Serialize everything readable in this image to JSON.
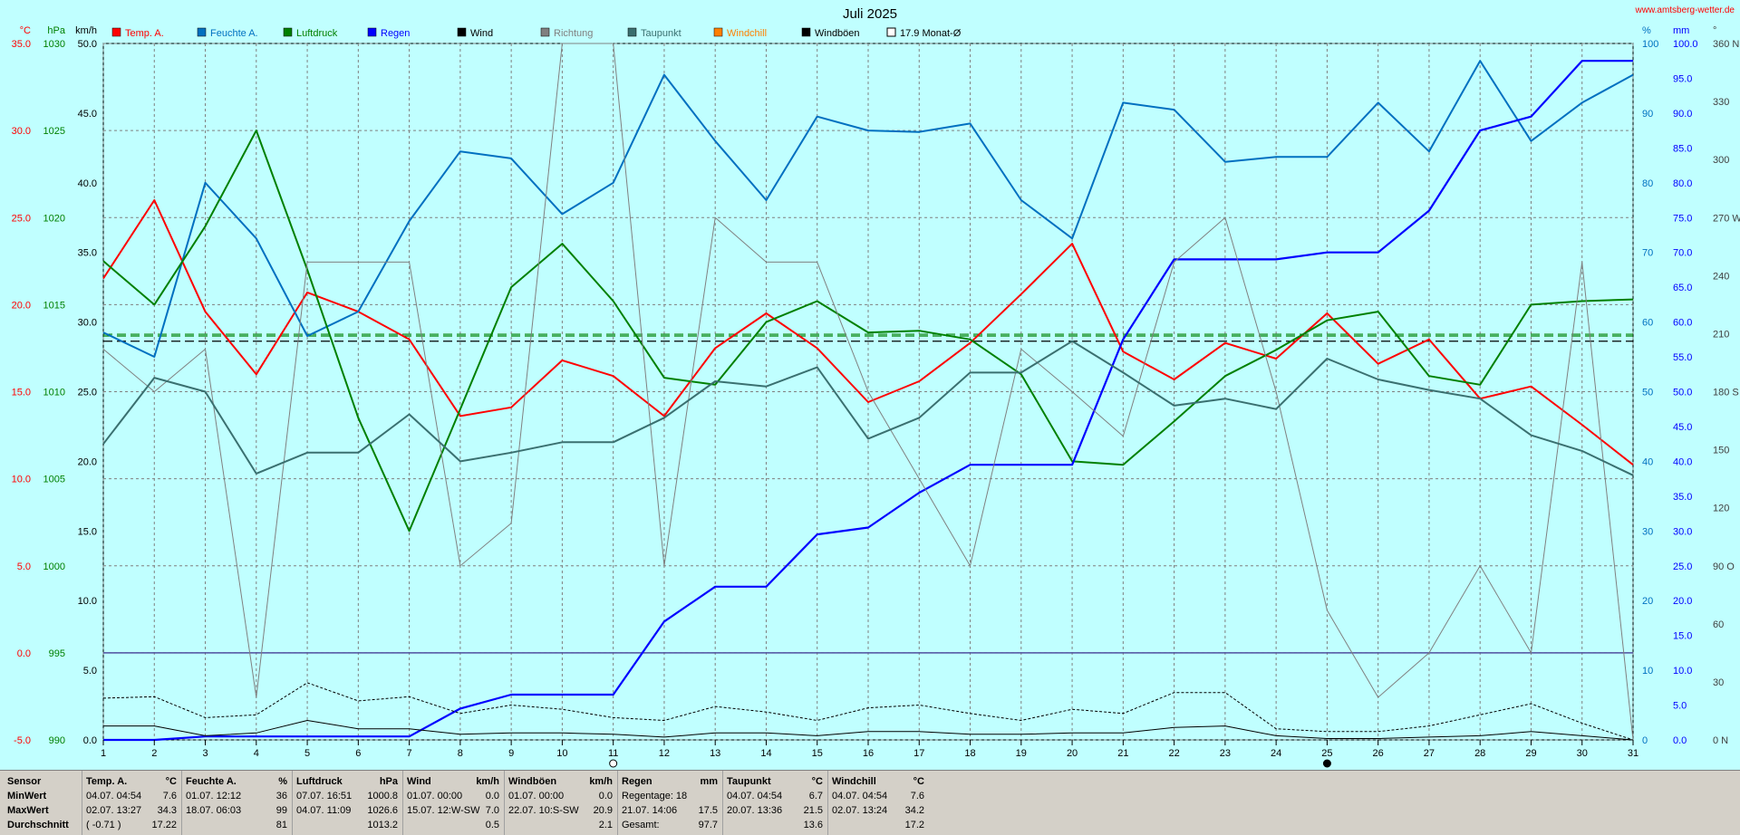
{
  "site": "www.amtsberg-wetter.de",
  "colors": {
    "temp": "#ff0000",
    "humidity": "#0070c0",
    "pressure": "#008000",
    "rain": "#0000ff",
    "wind": "#000000",
    "direction": "#808080",
    "dewpoint": "#3a7070",
    "windchill": "#ff8000",
    "gusts": "#000000",
    "background": "#c0ffff",
    "grid": "#808080"
  },
  "chart_data": {
    "type": "line",
    "title": "Juli 2025",
    "x": [
      1,
      2,
      3,
      4,
      5,
      6,
      7,
      8,
      9,
      10,
      11,
      12,
      13,
      14,
      15,
      16,
      17,
      18,
      19,
      20,
      21,
      22,
      23,
      24,
      25,
      26,
      27,
      28,
      29,
      30,
      31
    ],
    "axes": {
      "temp": {
        "unit": "°C",
        "min": -5,
        "max": 35,
        "ticks": [
          "35.0",
          "30.0",
          "25.0",
          "20.0",
          "15.0",
          "10.0",
          "5.0",
          "0.0",
          "-5.0"
        ]
      },
      "pressure": {
        "unit": "hPa",
        "min": 990,
        "max": 1030,
        "ticks": [
          "1030",
          "1025",
          "1020",
          "1015",
          "1010",
          "1005",
          "1000",
          "995",
          "990"
        ]
      },
      "wind": {
        "unit": "km/h",
        "min": 0,
        "max": 50,
        "ticks": [
          "50.0",
          "45.0",
          "40.0",
          "35.0",
          "30.0",
          "25.0",
          "20.0",
          "15.0",
          "10.0",
          "5.0",
          "0.0"
        ]
      },
      "humidity": {
        "unit": "%",
        "min": 0,
        "max": 100,
        "ticks": [
          "100",
          "90",
          "80",
          "70",
          "60",
          "50",
          "40",
          "30",
          "20",
          "10",
          "0"
        ]
      },
      "rain": {
        "unit": "mm",
        "min": 0,
        "max": 100,
        "ticks": [
          "100.0",
          "95.0",
          "90.0",
          "85.0",
          "80.0",
          "75.0",
          "70.0",
          "65.0",
          "60.0",
          "55.0",
          "50.0",
          "45.0",
          "40.0",
          "35.0",
          "30.0",
          "25.0",
          "20.0",
          "15.0",
          "10.0",
          "5.0",
          "0.0"
        ]
      },
      "direction": {
        "unit": "°",
        "min": 0,
        "max": 360,
        "ticks": [
          "360 N",
          "330",
          "300",
          "270 W",
          "240",
          "210",
          "180 S",
          "150",
          "120",
          "90 O",
          "60",
          "30",
          "0 N"
        ]
      }
    },
    "legend": [
      {
        "label": "Temp. A.",
        "key": "temp"
      },
      {
        "label": "Feuchte A.",
        "key": "humidity"
      },
      {
        "label": "Luftdruck",
        "key": "pressure"
      },
      {
        "label": "Regen",
        "key": "rain"
      },
      {
        "label": "Wind",
        "key": "wind"
      },
      {
        "label": "Richtung",
        "key": "direction"
      },
      {
        "label": "Taupunkt",
        "key": "dewpoint"
      },
      {
        "label": "Windchill",
        "key": "windchill"
      },
      {
        "label": "Windböen",
        "key": "gusts"
      },
      {
        "label": "17.9 Monat-Ø",
        "key": "monthavg"
      }
    ],
    "series": [
      {
        "name": "Temp. A.",
        "key": "temp",
        "axis": "temp",
        "values": [
          21.5,
          26.0,
          19.6,
          16.0,
          20.7,
          19.6,
          18.0,
          13.6,
          14.1,
          16.8,
          15.9,
          13.6,
          17.5,
          19.5,
          17.5,
          14.4,
          15.6,
          17.8,
          20.6,
          23.5,
          17.3,
          15.7,
          17.8,
          16.9,
          19.5,
          16.6,
          18.0,
          14.6,
          15.3,
          13.1,
          10.8
        ]
      },
      {
        "name": "Feuchte A.",
        "key": "humidity",
        "axis": "humidity",
        "values": [
          58.5,
          55.0,
          80.0,
          72.0,
          58.0,
          61.5,
          74.5,
          84.5,
          83.5,
          75.5,
          80.0,
          95.5,
          86.0,
          77.5,
          89.5,
          87.5,
          87.3,
          88.5,
          77.5,
          72.0,
          91.5,
          90.5,
          83.0,
          83.7,
          83.7,
          91.5,
          84.5,
          97.5,
          86.0,
          91.5,
          95.5
        ]
      },
      {
        "name": "Luftdruck",
        "key": "pressure",
        "axis": "pressure",
        "values": [
          1017.5,
          1015.0,
          1019.5,
          1025.0,
          1017.0,
          1008.5,
          1002.0,
          1009.0,
          1016.0,
          1018.5,
          1015.2,
          1010.8,
          1010.4,
          1014.0,
          1015.2,
          1013.4,
          1013.5,
          1013.0,
          1011.0,
          1006.0,
          1005.8,
          1008.3,
          1010.9,
          1012.4,
          1014.1,
          1014.6,
          1010.9,
          1010.4,
          1015.0,
          1015.2,
          1015.3
        ]
      },
      {
        "name": "Regen",
        "key": "rain",
        "axis": "rain",
        "values": [
          0.0,
          0.0,
          0.5,
          0.5,
          0.5,
          0.5,
          0.5,
          4.5,
          6.5,
          6.5,
          6.5,
          17.0,
          22.0,
          22.0,
          29.5,
          30.5,
          35.5,
          39.5,
          39.5,
          39.5,
          57.5,
          69.0,
          69.0,
          69.0,
          70.0,
          70.0,
          76.0,
          87.5,
          89.5,
          97.5,
          97.5
        ]
      },
      {
        "name": "Wind",
        "key": "wind",
        "axis": "wind",
        "values": [
          1.0,
          1.0,
          0.3,
          0.5,
          1.4,
          0.8,
          0.8,
          0.4,
          0.5,
          0.5,
          0.4,
          0.2,
          0.5,
          0.5,
          0.3,
          0.6,
          0.6,
          0.4,
          0.4,
          0.5,
          0.5,
          0.9,
          1.0,
          0.3,
          0.1,
          0.1,
          0.2,
          0.3,
          0.6,
          0.3,
          0.0
        ]
      },
      {
        "name": "Windböen",
        "key": "gusts",
        "axis": "wind",
        "values": [
          3.0,
          3.1,
          1.6,
          1.8,
          4.1,
          2.8,
          3.1,
          1.9,
          2.5,
          2.2,
          1.6,
          1.4,
          2.4,
          2.0,
          1.4,
          2.3,
          2.5,
          1.9,
          1.4,
          2.2,
          1.9,
          3.4,
          3.4,
          0.8,
          0.6,
          0.6,
          1.0,
          1.8,
          2.6,
          1.2,
          0.0
        ]
      },
      {
        "name": "Richtung",
        "key": "direction",
        "axis": "direction",
        "values": [
          202,
          180,
          202,
          22,
          247,
          247,
          247,
          90,
          112,
          360,
          360,
          90,
          270,
          247,
          247,
          180,
          135,
          90,
          202,
          180,
          157,
          247,
          270,
          180,
          67,
          22,
          45,
          90,
          45,
          247,
          0
        ]
      },
      {
        "name": "Taupunkt",
        "key": "dewpoint",
        "axis": "temp",
        "values": [
          12.0,
          15.8,
          15.0,
          10.3,
          11.5,
          11.5,
          13.7,
          11.0,
          11.5,
          12.1,
          12.1,
          13.5,
          15.6,
          15.3,
          16.4,
          12.3,
          13.5,
          16.1,
          16.1,
          17.9,
          16.1,
          14.2,
          14.6,
          14.0,
          16.9,
          15.7,
          15.1,
          14.6,
          12.5,
          11.6,
          10.2
        ]
      }
    ],
    "reference_lines": [
      {
        "name": "17.9 Monat-Ø",
        "axis": "temp",
        "value": 17.9,
        "color": "#000000"
      },
      {
        "name": "Luftdruck-Ø",
        "axis": "pressure",
        "value": 1013.2,
        "color": "#008000"
      },
      {
        "name": "Temp-Ø",
        "axis": "temp",
        "value": 18.3,
        "color": "#008000"
      },
      {
        "name": "Nulllinie",
        "axis": "temp",
        "value": 0.0,
        "color": "#5050a0"
      }
    ],
    "markers": [
      {
        "day": 11,
        "symbol": "open-circle"
      },
      {
        "day": 25,
        "symbol": "filled-circle"
      }
    ]
  },
  "stats": {
    "row_labels": [
      "Sensor",
      "MinWert",
      "MaxWert",
      "Durchschnitt"
    ],
    "columns": [
      {
        "title": "Temp. A.",
        "unit": "°C",
        "rows": [
          [
            "04.07.  04:54",
            "7.6"
          ],
          [
            "02.07.  13:27",
            "34.3"
          ],
          [
            "( -0.71 )",
            "17.22"
          ]
        ]
      },
      {
        "title": "Feuchte A.",
        "unit": "%",
        "rows": [
          [
            "01.07.  12:12",
            "36"
          ],
          [
            "18.07.  06:03",
            "99"
          ],
          [
            "",
            "81"
          ]
        ]
      },
      {
        "title": "Luftdruck",
        "unit": "hPa",
        "rows": [
          [
            "07.07.  16:51",
            "1000.8"
          ],
          [
            "04.07.  11:09",
            "1026.6"
          ],
          [
            "",
            "1013.2"
          ]
        ]
      },
      {
        "title": "Wind",
        "unit": "km/h",
        "rows": [
          [
            "01.07.  00:00",
            "0.0"
          ],
          [
            "15.07.  12:W-SW",
            "7.0"
          ],
          [
            "",
            "0.5"
          ]
        ]
      },
      {
        "title": "Windböen",
        "unit": "km/h",
        "rows": [
          [
            "01.07.  00:00",
            "0.0"
          ],
          [
            "22.07.  10:S-SW",
            "20.9"
          ],
          [
            "",
            "2.1"
          ]
        ]
      },
      {
        "title": "Regen",
        "unit": "mm",
        "rows": [
          [
            "Regentage: 18",
            ""
          ],
          [
            "21.07.  14:06",
            "17.5"
          ],
          [
            "Gesamt:",
            "97.7"
          ]
        ]
      },
      {
        "title": "Taupunkt",
        "unit": "°C",
        "rows": [
          [
            "04.07.  04:54",
            "6.7"
          ],
          [
            "20.07.  13:36",
            "21.5"
          ],
          [
            "",
            "13.6"
          ]
        ]
      },
      {
        "title": "Windchill",
        "unit": "°C",
        "rows": [
          [
            "04.07.  04:54",
            "7.6"
          ],
          [
            "02.07.  13:24",
            "34.2"
          ],
          [
            "",
            "17.2"
          ]
        ]
      }
    ]
  }
}
